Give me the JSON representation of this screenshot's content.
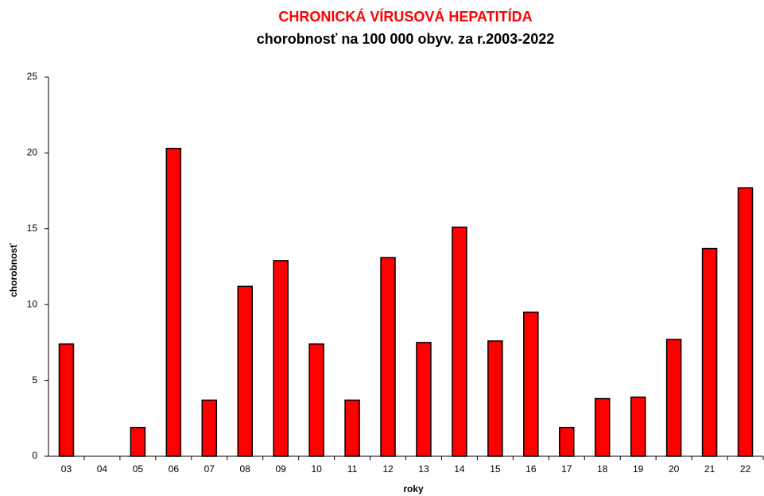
{
  "chart_data": {
    "type": "bar",
    "title": "CHRONICKÁ VÍRUSOVÁ HEPATITÍDA",
    "subtitle": "chorobnosť na 100 000 obyv. za r.2003-2022",
    "x_label": "roky",
    "y_label": "chorobnosť",
    "categories": [
      "03",
      "04",
      "05",
      "06",
      "07",
      "08",
      "09",
      "10",
      "11",
      "12",
      "13",
      "14",
      "15",
      "16",
      "17",
      "18",
      "19",
      "20",
      "21",
      "22"
    ],
    "values": [
      7.4,
      0,
      1.9,
      20.3,
      3.7,
      11.2,
      12.9,
      7.4,
      3.7,
      13.1,
      7.5,
      15.1,
      7.6,
      9.5,
      1.9,
      3.8,
      3.9,
      7.7,
      13.7,
      17.7
    ],
    "color": "#ff0000",
    "ylim": [
      0,
      25
    ],
    "yticks": [
      0,
      5,
      10,
      15,
      20,
      25
    ],
    "grid": false
  }
}
